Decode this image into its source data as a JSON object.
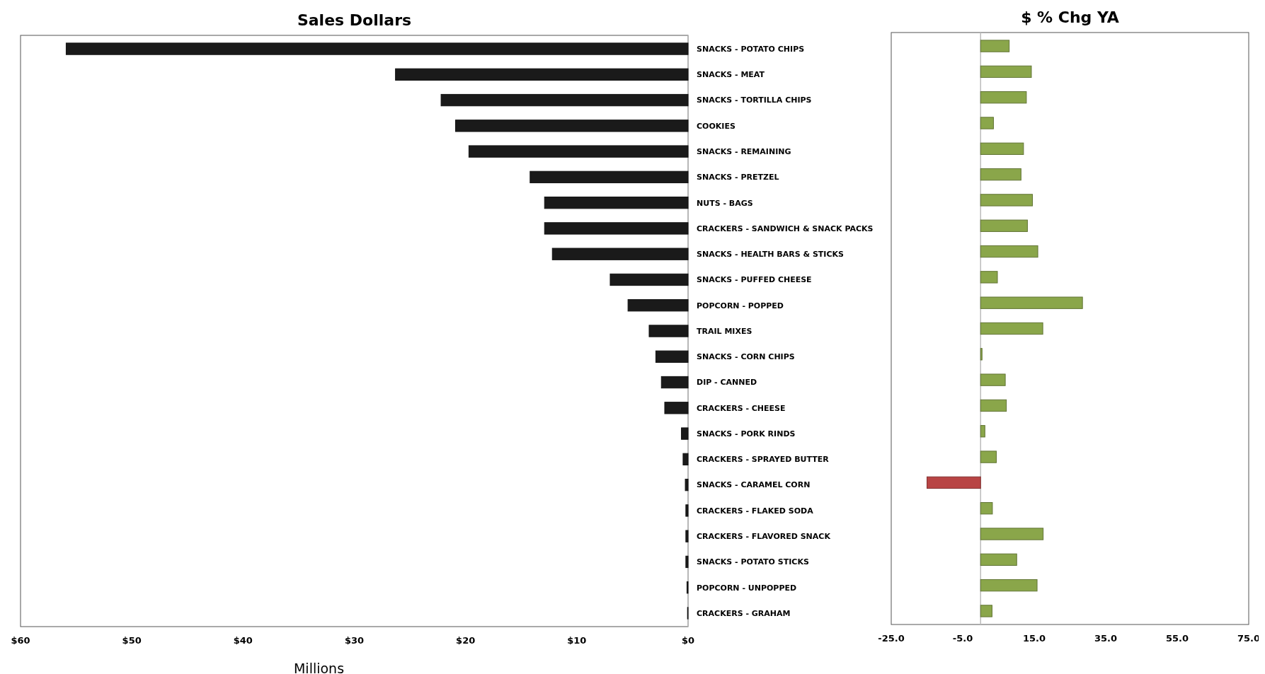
{
  "chart_data": [
    {
      "type": "bar",
      "orientation": "horizontal",
      "title": "Sales Dollars",
      "xlabel": "Millions",
      "categories": [
        "SNACKS - POTATO CHIPS",
        "SNACKS - MEAT",
        "SNACKS - TORTILLA CHIPS",
        "COOKIES",
        "SNACKS - REMAINING",
        "SNACKS - PRETZEL",
        "NUTS - BAGS",
        "CRACKERS - SANDWICH & SNACK PACKS",
        "SNACKS - HEALTH BARS & STICKS",
        "SNACKS - PUFFED CHEESE",
        "POPCORN - POPPED",
        "TRAIL MIXES",
        "SNACKS - CORN CHIPS",
        "DIP - CANNED",
        "CRACKERS - CHEESE",
        "SNACKS - PORK RINDS",
        "CRACKERS - SPRAYED BUTTER",
        "SNACKS - CARAMEL CORN",
        "CRACKERS - FLAKED SODA",
        "CRACKERS - FLAVORED SNACK",
        "SNACKS - POTATO STICKS",
        "POPCORN - UNPOPPED",
        "CRACKERS - GRAHAM"
      ],
      "values": [
        55.9,
        26.3,
        22.2,
        20.9,
        19.7,
        14.2,
        12.9,
        12.9,
        12.2,
        7.0,
        5.4,
        3.5,
        2.9,
        2.4,
        2.1,
        0.6,
        0.45,
        0.25,
        0.2,
        0.2,
        0.2,
        0.1,
        0.05
      ],
      "color": "#1a1a1a",
      "xlim": [
        60,
        0
      ],
      "xticks": [
        {
          "value": 60,
          "label": "$60"
        },
        {
          "value": 50,
          "label": "$50"
        },
        {
          "value": 40,
          "label": "$40"
        },
        {
          "value": 30,
          "label": "$30"
        },
        {
          "value": 20,
          "label": "$20"
        },
        {
          "value": 10,
          "label": "$10"
        },
        {
          "value": 0,
          "label": "$0"
        }
      ],
      "grid": false
    },
    {
      "type": "bar",
      "orientation": "horizontal",
      "title": "$ % Chg YA",
      "categories": [
        null,
        null,
        null,
        null,
        null,
        null,
        null,
        null,
        null,
        null,
        null,
        null,
        null,
        null,
        null,
        null,
        null,
        null,
        null,
        null,
        null,
        null,
        null
      ],
      "values": [
        8.0,
        14.2,
        12.8,
        3.6,
        12.0,
        11.3,
        14.5,
        13.1,
        16.0,
        4.7,
        28.5,
        17.4,
        0.4,
        6.9,
        7.2,
        1.2,
        4.4,
        -15.0,
        3.3,
        17.5,
        10.1,
        15.8,
        3.2
      ],
      "colors": [
        "#8aa64a",
        "#8aa64a",
        "#8aa64a",
        "#8aa64a",
        "#8aa64a",
        "#8aa64a",
        "#8aa64a",
        "#8aa64a",
        "#8aa64a",
        "#8aa64a",
        "#8aa64a",
        "#8aa64a",
        "#8aa64a",
        "#8aa64a",
        "#8aa64a",
        "#8aa64a",
        "#8aa64a",
        "#b84444",
        "#8aa64a",
        "#8aa64a",
        "#8aa64a",
        "#8aa64a",
        "#8aa64a"
      ],
      "xlim": [
        -25,
        75
      ],
      "xticks": [
        {
          "value": -25,
          "label": "-25.0"
        },
        {
          "value": -5,
          "label": "-5.0"
        },
        {
          "value": 15,
          "label": "15.0"
        },
        {
          "value": 35,
          "label": "35.0"
        },
        {
          "value": 55,
          "label": "55.0"
        },
        {
          "value": 75,
          "label": "75.0"
        }
      ],
      "tick_labels": "x",
      "grid": false
    }
  ]
}
